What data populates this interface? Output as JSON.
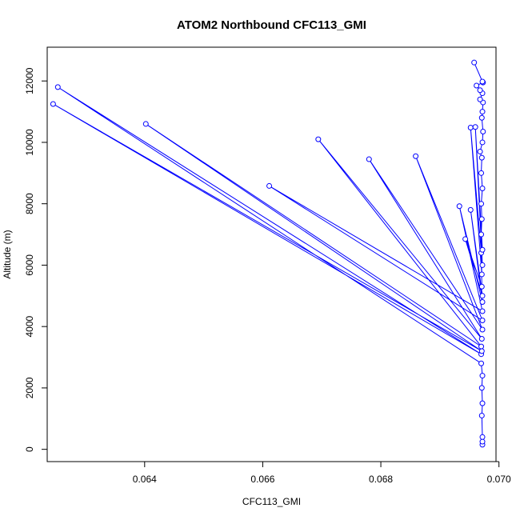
{
  "chart_data": {
    "type": "line",
    "title": "ATOM2 Northbound CFC113_GMI",
    "xlabel": "CFC113_GMI",
    "ylabel": "Altitude (m)",
    "xlim": [
      0.06235,
      0.06995
    ],
    "ylim": [
      -400,
      13100
    ],
    "x_ticks": [
      0.064,
      0.066,
      0.068,
      0.07
    ],
    "x_tick_labels": [
      "0.064",
      "0.066",
      "0.068",
      "0.070"
    ],
    "y_ticks": [
      0,
      2000,
      4000,
      6000,
      8000,
      10000,
      12000
    ],
    "y_tick_labels": [
      "0",
      "2000",
      "4000",
      "6000",
      "8000",
      "10000",
      "12000"
    ],
    "grid": false,
    "markers": "open-circle",
    "series": [
      {
        "color": "#0000ff",
        "points": [
          [
            0.06972,
            150
          ],
          [
            0.06972,
            250
          ],
          [
            0.06972,
            400
          ],
          [
            0.06971,
            1100
          ],
          [
            0.06972,
            1500
          ],
          [
            0.06971,
            2000
          ],
          [
            0.06972,
            2400
          ],
          [
            0.0697,
            2800
          ],
          [
            0.06253,
            11800
          ],
          [
            0.0697,
            3100
          ],
          [
            0.06245,
            11250
          ],
          [
            0.06971,
            3200
          ],
          [
            0.06402,
            10600
          ],
          [
            0.0697,
            3350
          ],
          [
            0.06694,
            10100
          ],
          [
            0.06971,
            3600
          ],
          [
            0.0678,
            9450
          ],
          [
            0.06972,
            3900
          ],
          [
            0.06859,
            9550
          ],
          [
            0.06972,
            4200
          ],
          [
            0.06611,
            8580
          ],
          [
            0.06972,
            4500
          ],
          [
            0.06933,
            7920
          ],
          [
            0.06972,
            4800
          ],
          [
            0.06952,
            7800
          ],
          [
            0.06972,
            5000
          ],
          [
            0.06943,
            6850
          ],
          [
            0.06971,
            5300
          ],
          [
            0.0697,
            6400
          ],
          [
            0.06971,
            5700
          ],
          [
            0.06952,
            10480
          ],
          [
            0.06972,
            6000
          ],
          [
            0.0696,
            10500
          ],
          [
            0.06972,
            6500
          ],
          [
            0.0697,
            7000
          ],
          [
            0.06971,
            7500
          ],
          [
            0.0697,
            8000
          ],
          [
            0.06972,
            8500
          ],
          [
            0.0697,
            9000
          ],
          [
            0.06971,
            9500
          ],
          [
            0.06968,
            9700
          ],
          [
            0.06972,
            10000
          ],
          [
            0.06973,
            10350
          ],
          [
            0.06971,
            10800
          ],
          [
            0.06972,
            11000
          ],
          [
            0.06973,
            11300
          ],
          [
            0.06968,
            11400
          ],
          [
            0.06972,
            11600
          ],
          [
            0.06968,
            11700
          ],
          [
            0.06962,
            11850
          ],
          [
            0.06973,
            11950
          ],
          [
            0.06972,
            11980
          ],
          [
            0.06958,
            12600
          ]
        ]
      }
    ]
  }
}
